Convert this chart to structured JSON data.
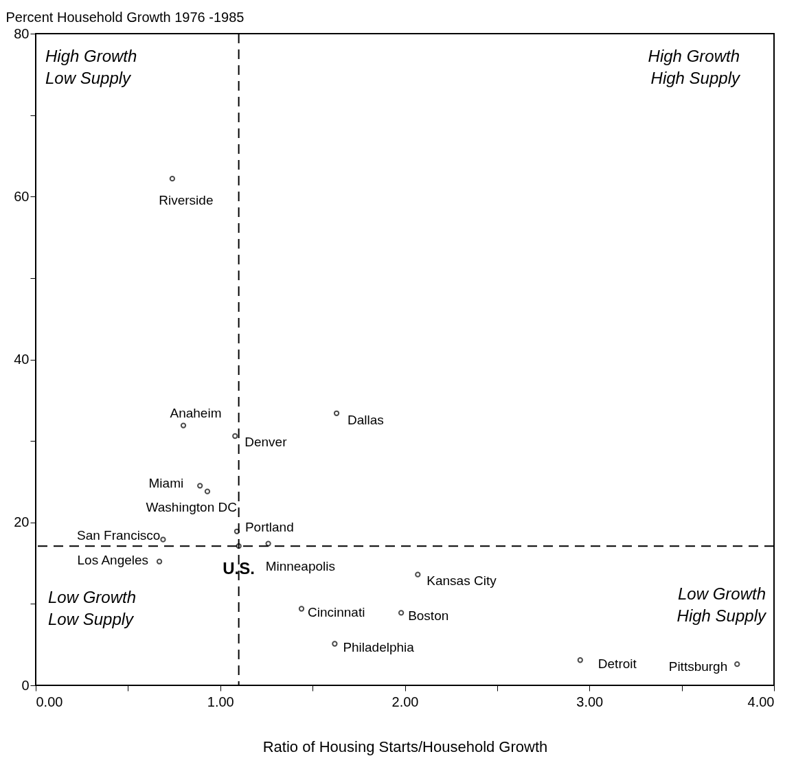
{
  "chart_data": {
    "type": "scatter",
    "ylabel": "Percent Household Growth 1976 -1985",
    "xlabel": "Ratio of Housing Starts/Household Growth",
    "xlim": [
      0,
      4
    ],
    "xticks": [
      {
        "value": 0,
        "label": "0.00"
      },
      {
        "value": 0.5,
        "label": null
      },
      {
        "value": 1,
        "label": "1.00"
      },
      {
        "value": 1.5,
        "label": null
      },
      {
        "value": 2,
        "label": "2.00"
      },
      {
        "value": 2.5,
        "label": null
      },
      {
        "value": 3,
        "label": "3.00"
      },
      {
        "value": 3.5,
        "label": null
      },
      {
        "value": 4,
        "label": "4.00"
      }
    ],
    "ylim": [
      0,
      80
    ],
    "yticks": [
      0,
      {
        "value": 10,
        "label": null
      },
      20,
      {
        "value": 30,
        "label": null
      },
      40,
      {
        "value": 50,
        "label": null
      },
      60,
      {
        "value": 70,
        "label": null
      },
      80
    ],
    "grid": false,
    "legend": false,
    "marker": "circle",
    "ref_lines": [
      {
        "axis": "x",
        "value": 1.1,
        "label": null,
        "line_style": "dashed"
      },
      {
        "axis": "y",
        "value": 17.1,
        "label": null,
        "line_style": "dashed"
      }
    ],
    "annotations": [
      "High Growth\nLow Supply",
      "High Growth\nHigh Supply",
      "Low Growth\nLow Supply",
      "Low Growth\nHigh Supply"
    ],
    "series": [
      {
        "name": "Riverside",
        "color": "#000000",
        "x": [
          0.74
        ],
        "values": [
          62.2
        ]
      },
      {
        "name": "Anaheim",
        "color": "#000000",
        "x": [
          0.8
        ],
        "values": [
          31.9
        ]
      },
      {
        "name": "Denver",
        "color": "#000000",
        "x": [
          1.08
        ],
        "values": [
          30.6
        ]
      },
      {
        "name": "Dallas",
        "color": "#000000",
        "x": [
          1.63
        ],
        "values": [
          33.4
        ]
      },
      {
        "name": "Miami",
        "color": "#000000",
        "x": [
          0.89
        ],
        "values": [
          24.5
        ]
      },
      {
        "name": "Washington DC",
        "color": "#000000",
        "x": [
          0.93
        ],
        "values": [
          23.8
        ]
      },
      {
        "name": "San Francisco",
        "color": "#000000",
        "x": [
          0.69
        ],
        "values": [
          17.9
        ]
      },
      {
        "name": "Portland",
        "color": "#000000",
        "x": [
          1.09
        ],
        "values": [
          18.9
        ]
      },
      {
        "name": "U.S.",
        "color": "#000000",
        "x": [
          1.1
        ],
        "values": [
          17.1
        ]
      },
      {
        "name": "Minneapolis",
        "color": "#000000",
        "x": [
          1.26
        ],
        "values": [
          17.4
        ]
      },
      {
        "name": "Los Angeles",
        "color": "#000000",
        "x": [
          0.67
        ],
        "values": [
          15.2
        ]
      },
      {
        "name": "Kansas City",
        "color": "#000000",
        "x": [
          2.07
        ],
        "values": [
          13.6
        ]
      },
      {
        "name": "Cincinnati",
        "color": "#000000",
        "x": [
          1.44
        ],
        "values": [
          9.4
        ]
      },
      {
        "name": "Boston",
        "color": "#000000",
        "x": [
          1.98
        ],
        "values": [
          8.9
        ]
      },
      {
        "name": "Philadelphia",
        "color": "#000000",
        "x": [
          1.62
        ],
        "values": [
          5.1
        ]
      },
      {
        "name": "Detroit",
        "color": "#000000",
        "x": [
          2.95
        ],
        "values": [
          3.1
        ]
      },
      {
        "name": "Pittsburgh",
        "color": "#000000",
        "x": [
          3.8
        ],
        "values": [
          2.6
        ]
      }
    ]
  }
}
